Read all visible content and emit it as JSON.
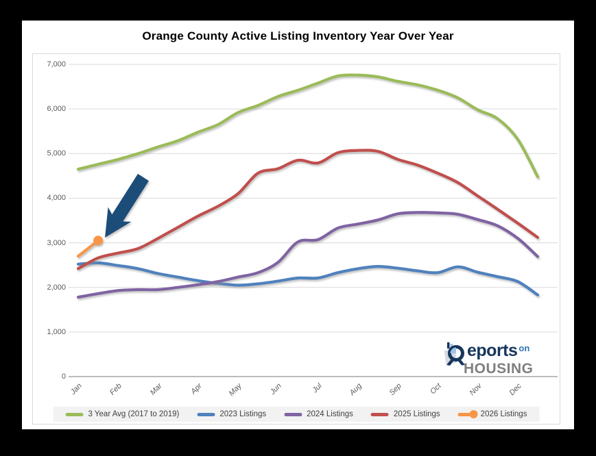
{
  "chart_data": {
    "type": "line",
    "title": "Orange County Active Listing Inventory Year Over Year",
    "xlabel": "",
    "ylabel": "",
    "ylim": [
      0,
      7000
    ],
    "grid": true,
    "legend_position": "bottom",
    "points_per_month": 2,
    "x_tick_labels": [
      "Jan",
      "Feb",
      "Mar",
      "Apr",
      "May",
      "Jun",
      "Jul",
      "Aug",
      "Sep",
      "Oct",
      "Nov",
      "Dec"
    ],
    "y_tick_labels": [
      "0",
      "1,000",
      "2,000",
      "3,000",
      "4,000",
      "5,000",
      "6,000",
      "7,000"
    ],
    "series": [
      {
        "name": "3 Year Avg (2017 to 2019)",
        "color": "#9BBB59",
        "marker_end": false,
        "values": [
          4650,
          4760,
          4870,
          5000,
          5150,
          5290,
          5480,
          5650,
          5920,
          6080,
          6280,
          6420,
          6580,
          6740,
          6760,
          6720,
          6620,
          6540,
          6420,
          6250,
          5980,
          5780,
          5320,
          4480
        ]
      },
      {
        "name": "2023 Listings",
        "color": "#4F81BD",
        "marker_end": false,
        "values": [
          2520,
          2550,
          2490,
          2420,
          2310,
          2230,
          2150,
          2090,
          2050,
          2080,
          2140,
          2210,
          2210,
          2330,
          2420,
          2470,
          2430,
          2370,
          2330,
          2460,
          2340,
          2240,
          2130,
          1830
        ]
      },
      {
        "name": "2024 Listings",
        "color": "#8064A2",
        "marker_end": false,
        "values": [
          1780,
          1860,
          1930,
          1950,
          1950,
          2000,
          2060,
          2130,
          2230,
          2330,
          2560,
          3020,
          3070,
          3330,
          3420,
          3510,
          3650,
          3680,
          3670,
          3640,
          3520,
          3380,
          3100,
          2690
        ]
      },
      {
        "name": "2025 Listings",
        "color": "#C0504D",
        "marker_end": false,
        "values": [
          2420,
          2660,
          2770,
          2870,
          3100,
          3350,
          3600,
          3820,
          4100,
          4560,
          4660,
          4850,
          4790,
          5020,
          5070,
          5050,
          4870,
          4740,
          4560,
          4350,
          4050,
          3750,
          3440,
          3120
        ]
      },
      {
        "name": "2026 Listings",
        "color": "#F79646",
        "marker_end": true,
        "values": [
          2700,
          3050
        ]
      }
    ],
    "annotation": {
      "type": "arrow",
      "color": "#1F4E79",
      "points_to": "2026 Listings latest point"
    }
  },
  "logo": {
    "word1_rest": "eports",
    "word2": "on",
    "word3": "HOUSING"
  }
}
